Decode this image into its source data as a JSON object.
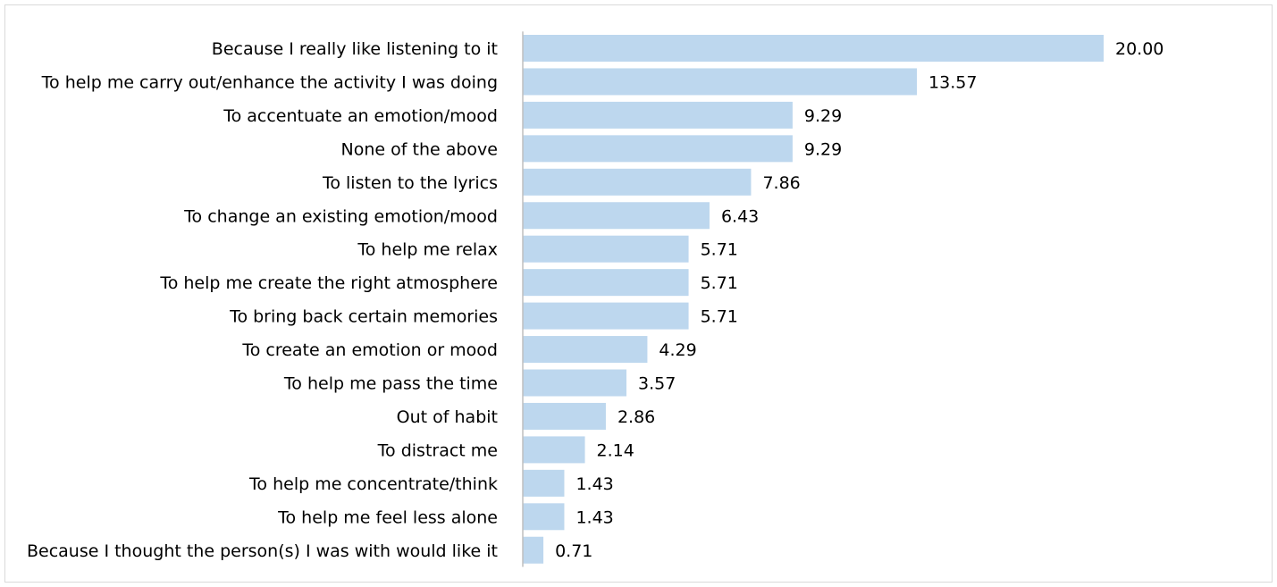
{
  "chart_data": {
    "type": "bar",
    "orientation": "horizontal",
    "categories": [
      "Because I really like listening to it",
      "To help me carry out/enhance the activity I was doing",
      "To accentuate an emotion/mood",
      "None of the above",
      "To listen to the lyrics",
      "To change an existing emotion/mood",
      "To help me relax",
      "To help me create the right atmosphere",
      "To bring back certain memories",
      "To create an emotion or mood",
      "To help me pass the time",
      "Out of habit",
      "To distract me",
      "To help me concentrate/think",
      "To help me feel less alone",
      "Because I thought the person(s) I was with would like it"
    ],
    "values": [
      20.0,
      13.57,
      9.29,
      9.29,
      7.86,
      6.43,
      5.71,
      5.71,
      5.71,
      4.29,
      3.57,
      2.86,
      2.14,
      1.43,
      1.43,
      0.71
    ],
    "value_labels": [
      "20.00",
      "13.57",
      "9.29",
      "9.29",
      "7.86",
      "6.43",
      "5.71",
      "5.71",
      "5.71",
      "4.29",
      "3.57",
      "2.86",
      "2.14",
      "1.43",
      "1.43",
      "0.71"
    ],
    "xlim": [
      0,
      20
    ],
    "grid": false,
    "legend": "none",
    "colors": {
      "bar": "#bdd7ee",
      "axis": "#bfbfbf",
      "frame": "#d9d9d9",
      "text": "#000000"
    }
  }
}
